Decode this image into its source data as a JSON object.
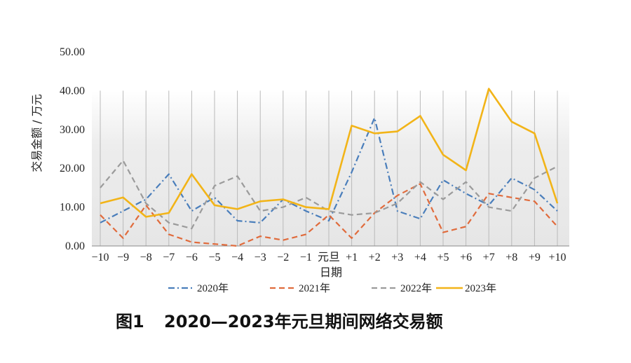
{
  "chart_data": {
    "type": "line",
    "title": "",
    "caption_label": "图1",
    "caption_text": "2020—2023年元旦期间网络交易额",
    "xlabel": "日期",
    "ylabel": "交易金额 / 万元",
    "ylim": [
      0,
      50
    ],
    "yticks": [
      "0.00",
      "10.00",
      "20.00",
      "30.00",
      "40.00",
      "50.00"
    ],
    "categories": [
      "−10",
      "−9",
      "−8",
      "−7",
      "−6",
      "−5",
      "−4",
      "−3",
      "−2",
      "−1",
      "元旦",
      "+1",
      "+2",
      "+3",
      "+4",
      "+5",
      "+6",
      "+7",
      "+8",
      "+9",
      "+10"
    ],
    "grid": "vertical lines at each category; background shaded gray below 40",
    "legend_position": "bottom",
    "series": [
      {
        "name": "2020年",
        "color": "#4a7ebb",
        "dash": "dashdot",
        "values": [
          6.0,
          9.0,
          12.0,
          18.5,
          9.0,
          12.5,
          6.5,
          6.0,
          12.0,
          9.0,
          6.5,
          19.0,
          33.0,
          9.0,
          7.0,
          17.0,
          13.5,
          10.5,
          17.5,
          14.5,
          9.0
        ]
      },
      {
        "name": "2021年",
        "color": "#e06b3c",
        "dash": "dashed",
        "values": [
          8.0,
          2.0,
          10.5,
          3.0,
          1.0,
          0.5,
          0.0,
          2.5,
          1.5,
          3.0,
          8.0,
          2.0,
          8.5,
          13.0,
          16.0,
          3.5,
          5.0,
          13.5,
          12.5,
          11.5,
          5.0
        ]
      },
      {
        "name": "2022年",
        "color": "#9b9b9b",
        "dash": "dashed",
        "values": [
          15.0,
          22.0,
          11.0,
          6.0,
          4.5,
          15.5,
          18.0,
          9.0,
          10.0,
          12.5,
          9.0,
          8.0,
          8.5,
          11.0,
          16.5,
          12.0,
          16.5,
          10.0,
          9.0,
          17.5,
          20.5
        ]
      },
      {
        "name": "2023年",
        "color": "#f2b418",
        "dash": "solid",
        "values": [
          11.0,
          12.5,
          7.5,
          8.5,
          18.5,
          10.5,
          9.5,
          11.5,
          12.0,
          10.0,
          9.5,
          31.0,
          29.0,
          29.5,
          33.5,
          23.5,
          19.5,
          40.5,
          32.0,
          29.0,
          11.0
        ]
      }
    ]
  }
}
